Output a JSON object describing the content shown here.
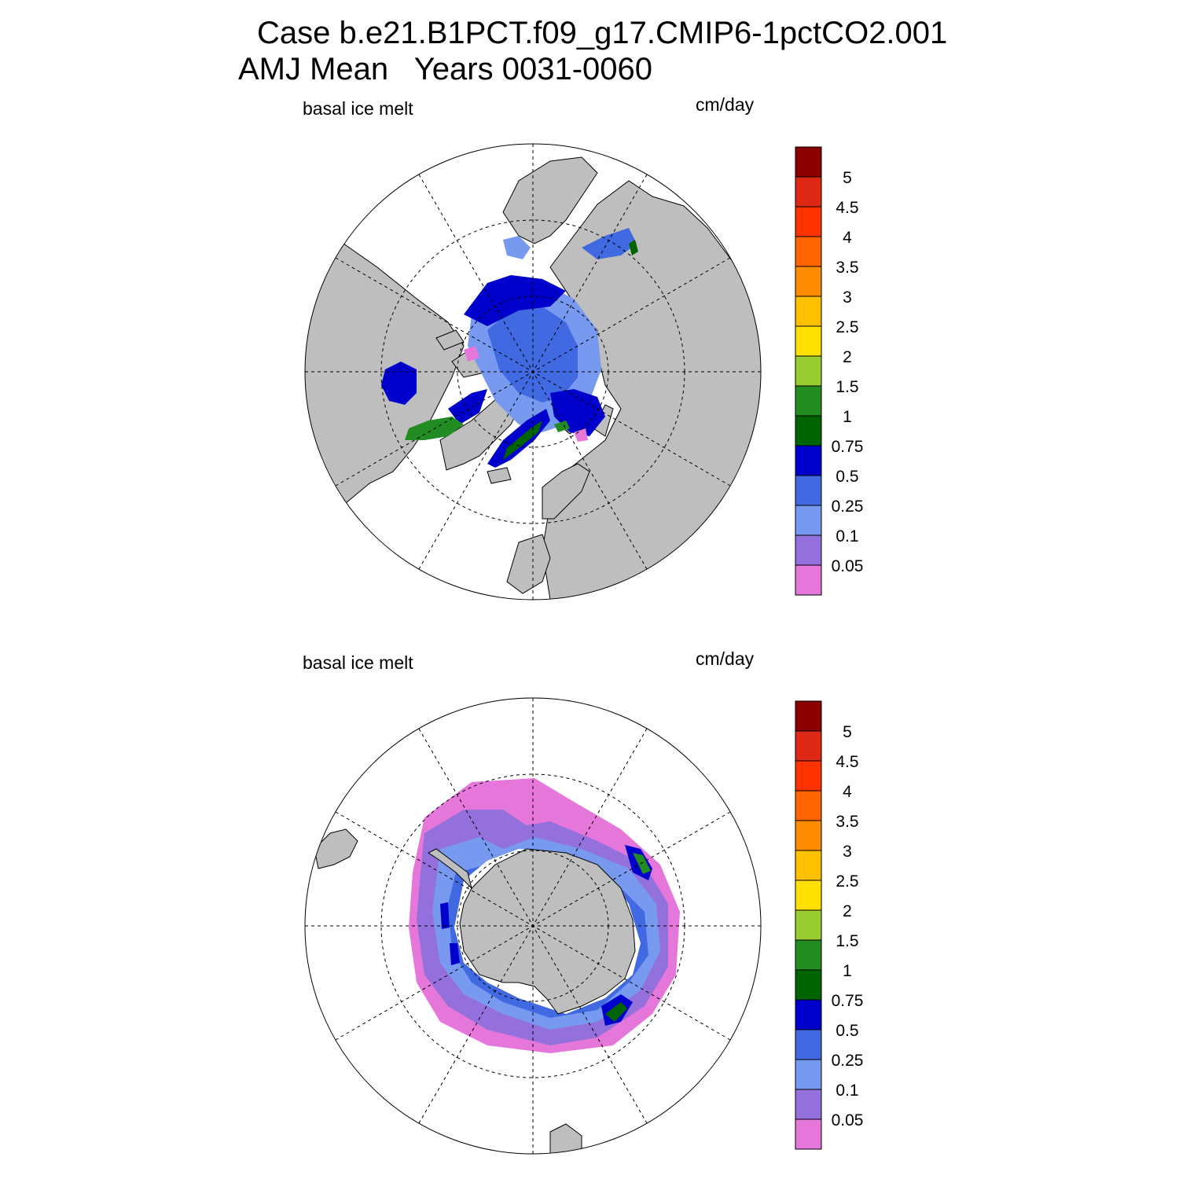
{
  "header": {
    "title_line1": "Case b.e21.B1PCT.f09_g17.CMIP6-1pctCO2.001",
    "title_line2": "AMJ Mean   Years 0031-0060"
  },
  "panels": [
    {
      "id": "north",
      "hemisphere": "Arctic",
      "variable_label": "basal ice melt",
      "units_label": "cm/day"
    },
    {
      "id": "south",
      "hemisphere": "Antarctic",
      "variable_label": "basal ice melt",
      "units_label": "cm/day"
    }
  ],
  "colorbar": {
    "levels": [
      "0.05",
      "0.1",
      "0.25",
      "0.5",
      "0.75",
      "1",
      "1.5",
      "2",
      "2.5",
      "3",
      "3.5",
      "4",
      "4.5",
      "5"
    ],
    "colors": [
      "#e576da",
      "#9370db",
      "#7799f0",
      "#4169e1",
      "#0000cd",
      "#006400",
      "#228b22",
      "#9acd32",
      "#ffe000",
      "#ffc000",
      "#ff8c00",
      "#ff6400",
      "#ff3200",
      "#dc2814",
      "#8b0000"
    ]
  },
  "map_colors": {
    "land": "#bebebe",
    "ocean_no_ice": "#ffffff",
    "coastline": "#000000",
    "graticule": "#000000"
  }
}
